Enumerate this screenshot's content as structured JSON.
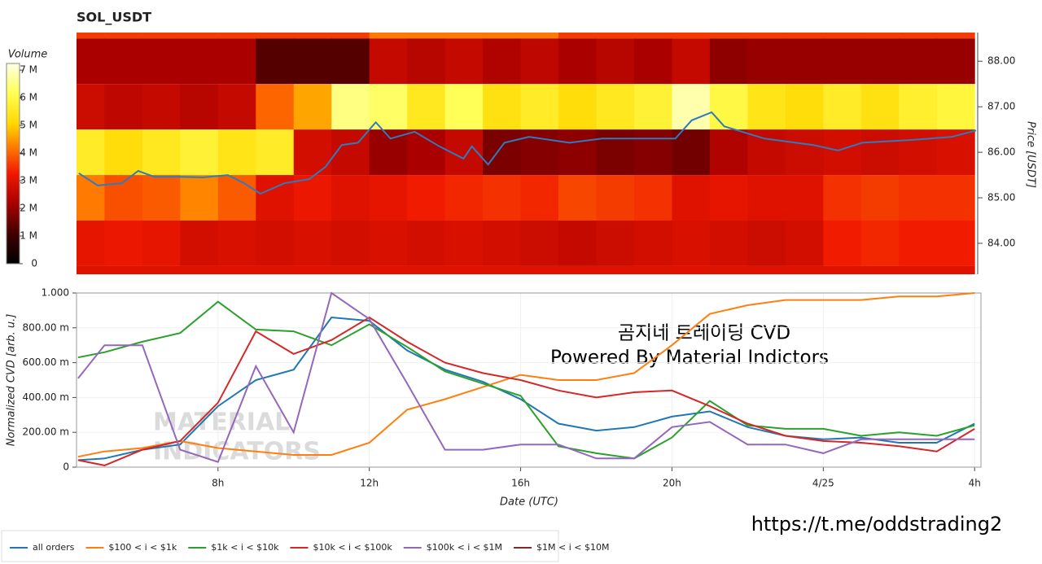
{
  "chart_data": [
    {
      "type": "heatmap",
      "title": "SOL_USDT",
      "x": [
        4.5,
        5.5,
        6.5,
        7.5,
        8.5,
        9.5,
        10.5,
        11.5,
        12.5,
        13.5,
        14.5,
        15.5,
        16.5,
        17.5,
        18.5,
        19.5,
        20.5,
        21.5,
        22.5,
        23.5,
        24.5,
        25.5,
        26.5,
        27.5
      ],
      "y": [
        89,
        88,
        87,
        86,
        85,
        84,
        83
      ],
      "z": [
        [
          3600000,
          3600000,
          3600000,
          3600000,
          3600000,
          3600000,
          3600000,
          3600000,
          4200000,
          4200000,
          4200000,
          4200000,
          4200000,
          3600000,
          3600000,
          3600000,
          3600000,
          3600000,
          3600000,
          3600000,
          3600000,
          3600000,
          3600000,
          3600000
        ],
        [
          2200000,
          2200000,
          2200000,
          2200000,
          2200000,
          1300000,
          1300000,
          1300000,
          2600000,
          2400000,
          2600000,
          2300000,
          2500000,
          2200000,
          2400000,
          2200000,
          2600000,
          1900000,
          2000000,
          2000000,
          2000000,
          2000000,
          2000000,
          2000000
        ],
        [
          2700000,
          2500000,
          2600000,
          2400000,
          2600000,
          4000000,
          4600000,
          6500000,
          6300000,
          5500000,
          6200000,
          5300000,
          5600000,
          5200000,
          5500000,
          5800000,
          6800000,
          6000000,
          5400000,
          5200000,
          5600000,
          5300000,
          5700000,
          5900000
        ],
        [
          5600000,
          5200000,
          5500000,
          5800000,
          5400000,
          5600000,
          2800000,
          2600000,
          2000000,
          2200000,
          2600000,
          1700000,
          1800000,
          1900000,
          1700000,
          1800000,
          1600000,
          2300000,
          2600000,
          2700000,
          2800000,
          2700000,
          2800000,
          2900000
        ],
        [
          4200000,
          3800000,
          3900000,
          4300000,
          3900000,
          3000000,
          3200000,
          3000000,
          3100000,
          3300000,
          3400000,
          3500000,
          3400000,
          3700000,
          3600000,
          3500000,
          3000000,
          3100000,
          3000000,
          3000000,
          3500000,
          3600000,
          3500000,
          3500000
        ],
        [
          3100000,
          3200000,
          3100000,
          2800000,
          2900000,
          2800000,
          2900000,
          2800000,
          2900000,
          2800000,
          2900000,
          2800000,
          2700000,
          2600000,
          2700000,
          2800000,
          2900000,
          2800000,
          2700000,
          2800000,
          3300000,
          3400000,
          3300000,
          3300000
        ],
        [
          3000000,
          3000000,
          3000000,
          3000000,
          3000000,
          3000000,
          3000000,
          3000000,
          3000000,
          3000000,
          3000000,
          3000000,
          3000000,
          3000000,
          3000000,
          3000000,
          3000000,
          3000000,
          3000000,
          3000000,
          3000000,
          3000000,
          3000000,
          3000000
        ]
      ],
      "colorscale": [
        [
          0,
          "#000000"
        ],
        [
          0.14,
          "#3a0000"
        ],
        [
          0.3,
          "#a80000"
        ],
        [
          0.45,
          "#f01800"
        ],
        [
          0.58,
          "#ff7a00"
        ],
        [
          0.7,
          "#ffd800"
        ],
        [
          0.85,
          "#ffff50"
        ],
        [
          1,
          "#ffffea"
        ]
      ],
      "colorbar": {
        "title": "Volume",
        "lim": [
          0,
          7240000
        ],
        "ticks": [
          0,
          {
            "value": 1000000,
            "label": "1 M"
          },
          {
            "value": 2000000,
            "label": "2 M"
          },
          {
            "value": 3000000,
            "label": "3 M"
          },
          {
            "value": 4000000,
            "label": "4 M"
          },
          {
            "value": 5000000,
            "label": "5 M"
          },
          {
            "value": 6000000,
            "label": "6 M"
          },
          {
            "value": 7000000,
            "label": "7 M"
          }
        ]
      },
      "xlim": [
        4.26,
        28.06
      ],
      "ylim": [
        83.32,
        88.63
      ],
      "ylabel": "Price [USDT]",
      "yticks": [
        {
          "value": 84,
          "label": "84.00"
        },
        {
          "value": 85,
          "label": "85.00"
        },
        {
          "value": 86,
          "label": "86.00"
        },
        {
          "value": 87,
          "label": "87.00"
        },
        {
          "value": 88,
          "label": "88.00"
        }
      ],
      "series": [
        {
          "color": "#2f7bbf",
          "x": [
            4.32,
            4.82,
            5.46,
            5.89,
            6.32,
            6.97,
            7.61,
            8.26,
            8.69,
            9.12,
            9.76,
            10.41,
            10.84,
            11.27,
            11.7,
            12.17,
            12.56,
            13.2,
            13.85,
            14.49,
            14.71,
            15.14,
            15.57,
            16.22,
            17.29,
            18.15,
            19.01,
            20.09,
            20.52,
            21.05,
            21.38,
            22.45,
            23.74,
            24.39,
            25.03,
            26.32,
            27.4,
            28.04
          ],
          "values": [
            85.54,
            85.27,
            85.32,
            85.59,
            85.46,
            85.46,
            85.45,
            85.5,
            85.32,
            85.09,
            85.32,
            85.41,
            85.68,
            86.16,
            86.21,
            86.66,
            86.3,
            86.45,
            86.13,
            85.86,
            86.13,
            85.73,
            86.21,
            86.34,
            86.21,
            86.3,
            86.3,
            86.3,
            86.7,
            86.88,
            86.57,
            86.3,
            86.16,
            86.04,
            86.21,
            86.27,
            86.34,
            86.48
          ]
        }
      ]
    },
    {
      "type": "line",
      "xlabel": "Date (UTC)",
      "ylabel": "Normalized CVD [arb. u.]",
      "x": [
        4.3,
        5,
        6,
        7,
        8,
        9,
        10,
        11,
        12,
        13,
        14,
        15,
        16,
        17,
        18,
        19,
        20,
        21,
        22,
        23,
        24,
        25,
        26,
        27,
        28
      ],
      "xlim": [
        4.26,
        28.06
      ],
      "xticks": [
        {
          "value": 8,
          "label": "8h"
        },
        {
          "value": 12,
          "label": "12h"
        },
        {
          "value": 16,
          "label": "16h"
        },
        {
          "value": 20,
          "label": "20h"
        },
        {
          "value": 24,
          "label": "4/25"
        },
        {
          "value": 28,
          "label": "4h"
        }
      ],
      "ylim": [
        0,
        1
      ],
      "yticks": [
        0,
        {
          "value": 0.2,
          "label": "200.00 m"
        },
        {
          "value": 0.4,
          "label": "400.00 m"
        },
        {
          "value": 0.6,
          "label": "600.00 m"
        },
        {
          "value": 0.8,
          "label": "800.00 m"
        },
        {
          "value": 1,
          "label": "1.000"
        }
      ],
      "grid": true,
      "legend": "bottom",
      "annotations": [
        "곰지네 트레이딩 CVD",
        "Powered By Material Indictors"
      ],
      "watermark": [
        "MATERIAL",
        "INDICATORS"
      ],
      "series": [
        {
          "name": "all orders",
          "color": "#1f77b4",
          "values": [
            0.04,
            0.05,
            0.1,
            0.13,
            0.35,
            0.5,
            0.56,
            0.86,
            0.84,
            0.67,
            0.56,
            0.49,
            0.39,
            0.25,
            0.21,
            0.23,
            0.29,
            0.32,
            0.23,
            0.18,
            0.16,
            0.17,
            0.14,
            0.14,
            0.25
          ]
        },
        {
          "name": "$100 < i < $1k",
          "color": "#ff7f0e",
          "values": [
            0.06,
            0.09,
            0.11,
            0.15,
            0.11,
            0.09,
            0.07,
            0.07,
            0.14,
            0.33,
            0.39,
            0.46,
            0.53,
            0.5,
            0.5,
            0.54,
            0.7,
            0.88,
            0.93,
            0.96,
            0.96,
            0.96,
            0.98,
            0.98,
            1.0
          ]
        },
        {
          "name": "$1k < i < $10k",
          "color": "#2ca02c",
          "values": [
            0.63,
            0.66,
            0.72,
            0.77,
            0.95,
            0.79,
            0.78,
            0.7,
            0.82,
            0.69,
            0.55,
            0.48,
            0.41,
            0.12,
            0.08,
            0.05,
            0.17,
            0.38,
            0.24,
            0.22,
            0.22,
            0.18,
            0.2,
            0.18,
            0.24
          ]
        },
        {
          "name": "$10k < i < $100k",
          "color": "#d62728",
          "values": [
            0.04,
            0.01,
            0.1,
            0.15,
            0.37,
            0.78,
            0.65,
            0.73,
            0.86,
            0.72,
            0.6,
            0.54,
            0.5,
            0.44,
            0.4,
            0.43,
            0.44,
            0.35,
            0.25,
            0.18,
            0.15,
            0.14,
            0.12,
            0.09,
            0.22
          ]
        },
        {
          "name": "$100k < i < $1M",
          "color": "#9467bd",
          "values": [
            0.51,
            0.7,
            0.7,
            0.1,
            0.03,
            0.58,
            0.2,
            1.0,
            0.85,
            0.48,
            0.1,
            0.1,
            0.13,
            0.13,
            0.05,
            0.05,
            0.23,
            0.26,
            0.13,
            0.13,
            0.08,
            0.16,
            0.16,
            0.16,
            0.16
          ]
        },
        {
          "name": "$1M < i < $10M",
          "color": "#7f2a2a",
          "values": [
            null,
            null,
            null,
            null,
            null,
            null,
            null,
            null,
            null,
            null,
            null,
            null,
            null,
            null,
            null,
            null,
            null,
            null,
            null,
            null,
            null,
            null,
            null,
            null,
            null
          ]
        }
      ]
    }
  ],
  "footer": {
    "url": "https://t.me/oddstrading2"
  }
}
